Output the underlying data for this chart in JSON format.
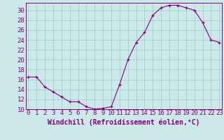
{
  "x": [
    0,
    1,
    2,
    3,
    4,
    5,
    6,
    7,
    8,
    9,
    10,
    11,
    12,
    13,
    14,
    15,
    16,
    17,
    18,
    19,
    20,
    21,
    22,
    23
  ],
  "y": [
    16.5,
    16.5,
    14.5,
    13.5,
    12.5,
    11.5,
    11.5,
    10.5,
    10.0,
    10.2,
    10.5,
    15.0,
    20.0,
    23.5,
    25.5,
    29.0,
    30.5,
    31.0,
    31.0,
    30.5,
    30.0,
    27.5,
    24.0,
    23.5
  ],
  "ylim": [
    10,
    31
  ],
  "xlim": [
    -0.3,
    23.3
  ],
  "yticks": [
    10,
    12,
    14,
    16,
    18,
    20,
    22,
    24,
    26,
    28,
    30
  ],
  "xticks": [
    0,
    1,
    2,
    3,
    4,
    5,
    6,
    7,
    8,
    9,
    10,
    11,
    12,
    13,
    14,
    15,
    16,
    17,
    18,
    19,
    20,
    21,
    22,
    23
  ],
  "xlabel": "Windchill (Refroidissement éolien,°C)",
  "line_color": "#800080",
  "marker_color": "#800080",
  "bg_color": "#cce8e8",
  "grid_color": "#99cccc",
  "spine_color": "#800080",
  "tick_label_color": "#800080",
  "xlabel_color": "#800080",
  "font_size": 6.5,
  "xlabel_fontsize": 7
}
